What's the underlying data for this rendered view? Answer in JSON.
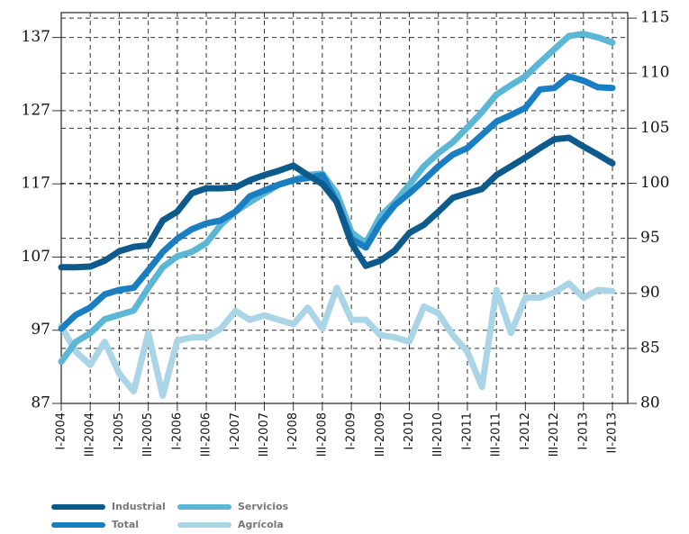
{
  "chart_data": {
    "type": "line",
    "categories": [
      "I-2004",
      null,
      "III-2004",
      null,
      "I-2005",
      null,
      "III-2005",
      null,
      "I-2006",
      null,
      "III-2006",
      null,
      "I-2007",
      null,
      "III-2007",
      null,
      "I-2008",
      null,
      "III-2008",
      null,
      "I-2009",
      null,
      "III-2009",
      null,
      "I-2010",
      null,
      "III-2010",
      null,
      "I-2011",
      null,
      "III-2011",
      null,
      "I-2012",
      null,
      "III-2012",
      null,
      "I-2013",
      null,
      "II-2013"
    ],
    "ylim": [
      87,
      140.4
    ],
    "yticks": [
      87,
      97,
      107,
      117,
      127,
      137
    ],
    "y2lim": [
      80,
      115.5
    ],
    "y2ticks": [
      80,
      85,
      90,
      95,
      100,
      105,
      110,
      115
    ],
    "grid": true,
    "series": [
      {
        "name": "Industrial",
        "color": "#0d5a8c",
        "values": [
          105.6,
          105.6,
          105.7,
          106.5,
          107.8,
          108.4,
          108.6,
          112.0,
          113.2,
          115.7,
          116.4,
          116.4,
          116.5,
          117.5,
          118.2,
          118.8,
          119.5,
          118.2,
          117.0,
          114.5,
          108.9,
          105.8,
          106.5,
          107.9,
          110.3,
          111.4,
          113.2,
          115.1,
          115.7,
          116.3,
          118.2,
          119.4,
          120.6,
          121.9,
          123.1,
          123.3,
          122.1,
          121.0,
          119.8
        ]
      },
      {
        "name": "Total",
        "color": "#1a7fc2",
        "values": [
          97.2,
          99.1,
          100.1,
          101.9,
          102.5,
          102.8,
          105.2,
          107.7,
          109.5,
          110.8,
          111.6,
          112.0,
          113.2,
          115.3,
          116.1,
          116.9,
          117.5,
          117.8,
          118.2,
          114.5,
          109.5,
          108.3,
          111.6,
          114.1,
          115.7,
          117.5,
          119.4,
          121.0,
          121.9,
          123.7,
          125.5,
          126.4,
          127.4,
          129.9,
          130.1,
          131.7,
          131.1,
          130.2,
          130.1
        ]
      },
      {
        "name": "Servicios",
        "color": "#5bb7d5",
        "values": [
          92.7,
          95.4,
          96.6,
          98.5,
          99.1,
          99.7,
          102.8,
          105.6,
          107.1,
          107.7,
          108.9,
          111.4,
          113.2,
          114.5,
          115.7,
          116.9,
          117.5,
          118.2,
          118.4,
          115.7,
          110.4,
          108.9,
          112.6,
          114.5,
          116.9,
          119.4,
          121.2,
          122.7,
          124.7,
          126.8,
          129.2,
          130.5,
          131.7,
          133.6,
          135.4,
          137.2,
          137.5,
          137.0,
          136.3
        ]
      },
      {
        "name": "Agrícola",
        "color": "#a9d5e7",
        "axis": "y2",
        "values": [
          87.0,
          84.7,
          83.5,
          85.6,
          82.7,
          81.1,
          86.4,
          80.7,
          85.7,
          86.0,
          86.0,
          86.8,
          88.4,
          87.6,
          88.0,
          87.6,
          87.2,
          88.7,
          86.8,
          90.5,
          87.6,
          87.6,
          86.2,
          86.0,
          85.6,
          88.8,
          88.2,
          86.2,
          84.7,
          81.5,
          90.3,
          86.4,
          89.6,
          89.6,
          90.1,
          90.9,
          89.6,
          90.3,
          90.2
        ]
      }
    ]
  }
}
